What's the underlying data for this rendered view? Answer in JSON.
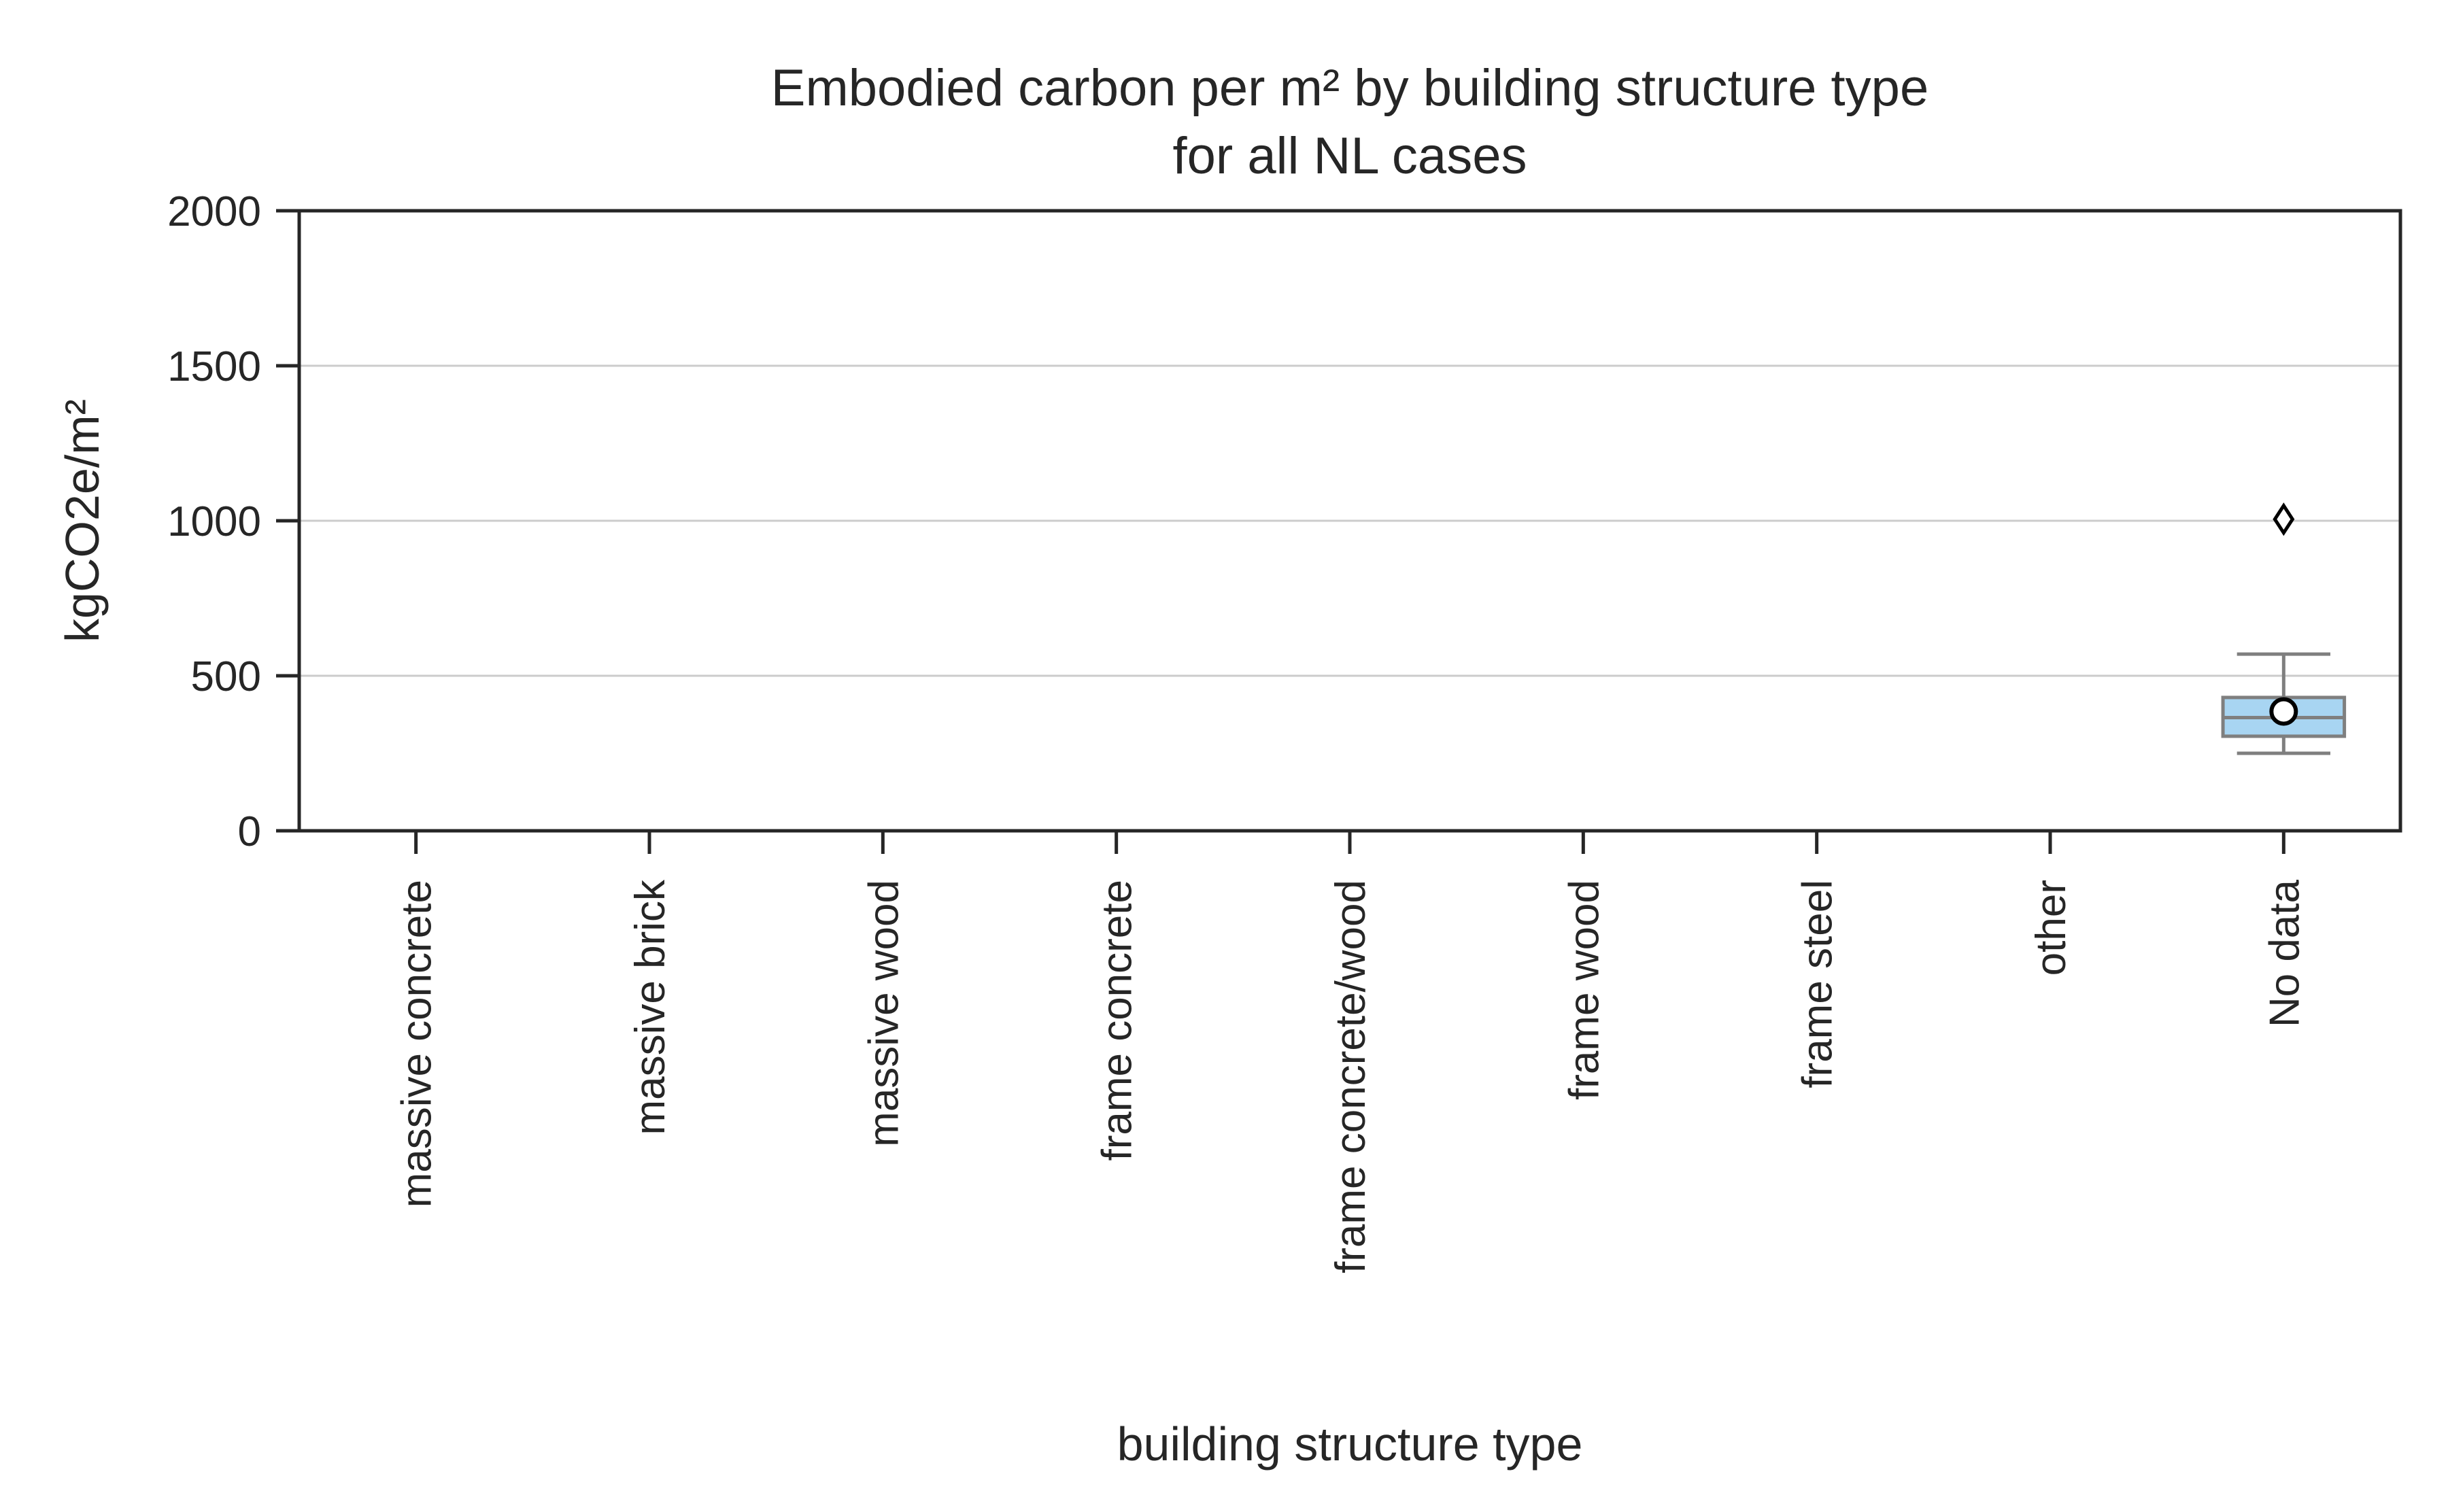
{
  "chart_data": {
    "type": "box",
    "title": [
      "Embodied carbon per m² by building structure type",
      "for all NL cases"
    ],
    "xlabel": "building structure type",
    "ylabel": "kgCO2e/m²",
    "ylim": [
      0,
      2000
    ],
    "yticks": [
      0,
      500,
      1000,
      1500,
      2000
    ],
    "y_grid": true,
    "categories": [
      "massive concrete",
      "massive brick",
      "massive wood",
      "frame concrete",
      "frame concrete/wood",
      "frame wood",
      "frame steel",
      "other",
      "No data"
    ],
    "boxes": [
      {
        "category": "No data",
        "whisker_low": 250,
        "q1": 305,
        "median": 365,
        "q3": 430,
        "whisker_high": 570,
        "mean": 385,
        "outliers": [
          1005
        ]
      }
    ],
    "colors": {
      "box_fill": "#a8d5f2",
      "box_edge": "#7f7f7f",
      "mean_marker_fill": "#ffffff",
      "mean_marker_edge": "#000000",
      "outlier_edge": "#000000"
    }
  }
}
